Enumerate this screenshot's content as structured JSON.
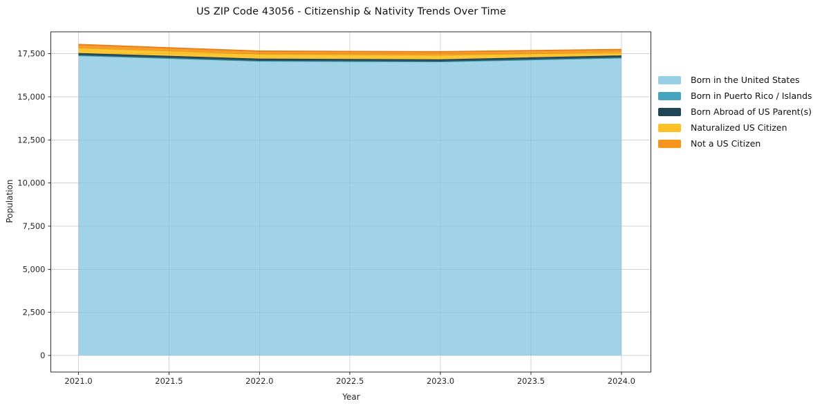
{
  "chart_data": {
    "type": "area",
    "stacked": true,
    "title": "US ZIP Code 43056 - Citizenship & Nativity Trends Over Time",
    "xlabel": "Year",
    "ylabel": "Population",
    "x": [
      2021,
      2022,
      2023,
      2024
    ],
    "series": [
      {
        "name": "Born in the United States",
        "color": "#99cfe6",
        "edge_color": "#99cfe6",
        "edge_width": 0,
        "values": [
          17370,
          17050,
          17010,
          17235
        ]
      },
      {
        "name": "Born in Puerto Rico / Islands",
        "color": "#45a5be",
        "edge_color": "#3a9aa8",
        "edge_width": 1.1,
        "values": [
          15,
          15,
          15,
          15
        ]
      },
      {
        "name": "Born Abroad of US Parent(s)",
        "color": "#1f4557",
        "edge_color": "#1f4557",
        "edge_width": 1.6,
        "values": [
          120,
          120,
          120,
          120
        ]
      },
      {
        "name": "Naturalized US Citizen",
        "color": "#fcc125",
        "edge_color": "#eaa414",
        "edge_width": 1.2,
        "values": [
          330,
          290,
          270,
          215
        ]
      },
      {
        "name": "Not a US Citizen",
        "color": "#f6941f",
        "edge_color": "#e97f15",
        "edge_width": 1.8,
        "values": [
          200,
          175,
          200,
          160
        ]
      }
    ],
    "xlim": [
      2020.847,
      2024.163
    ],
    "ylim": [
      -960,
      18770
    ],
    "x_tick_values": [
      2021.0,
      2021.5,
      2022.0,
      2022.5,
      2023.0,
      2023.5,
      2024.0
    ],
    "x_tick_labels": [
      "2021.0",
      "2021.5",
      "2022.0",
      "2022.5",
      "2023.0",
      "2023.5",
      "2024.0"
    ],
    "y_tick_values": [
      0,
      2500,
      5000,
      7500,
      10000,
      12500,
      15000,
      17500
    ],
    "y_tick_labels": [
      "0",
      "2,500",
      "5,000",
      "7,500",
      "10,000",
      "12,500",
      "15,000",
      "17,500"
    ],
    "grid": true,
    "legend_position": "outside-right-top",
    "colors": {
      "grid": "#d4d4d4",
      "spine": "#2b2b2b",
      "tick_text": "#262626",
      "background": "#ffffff"
    }
  }
}
